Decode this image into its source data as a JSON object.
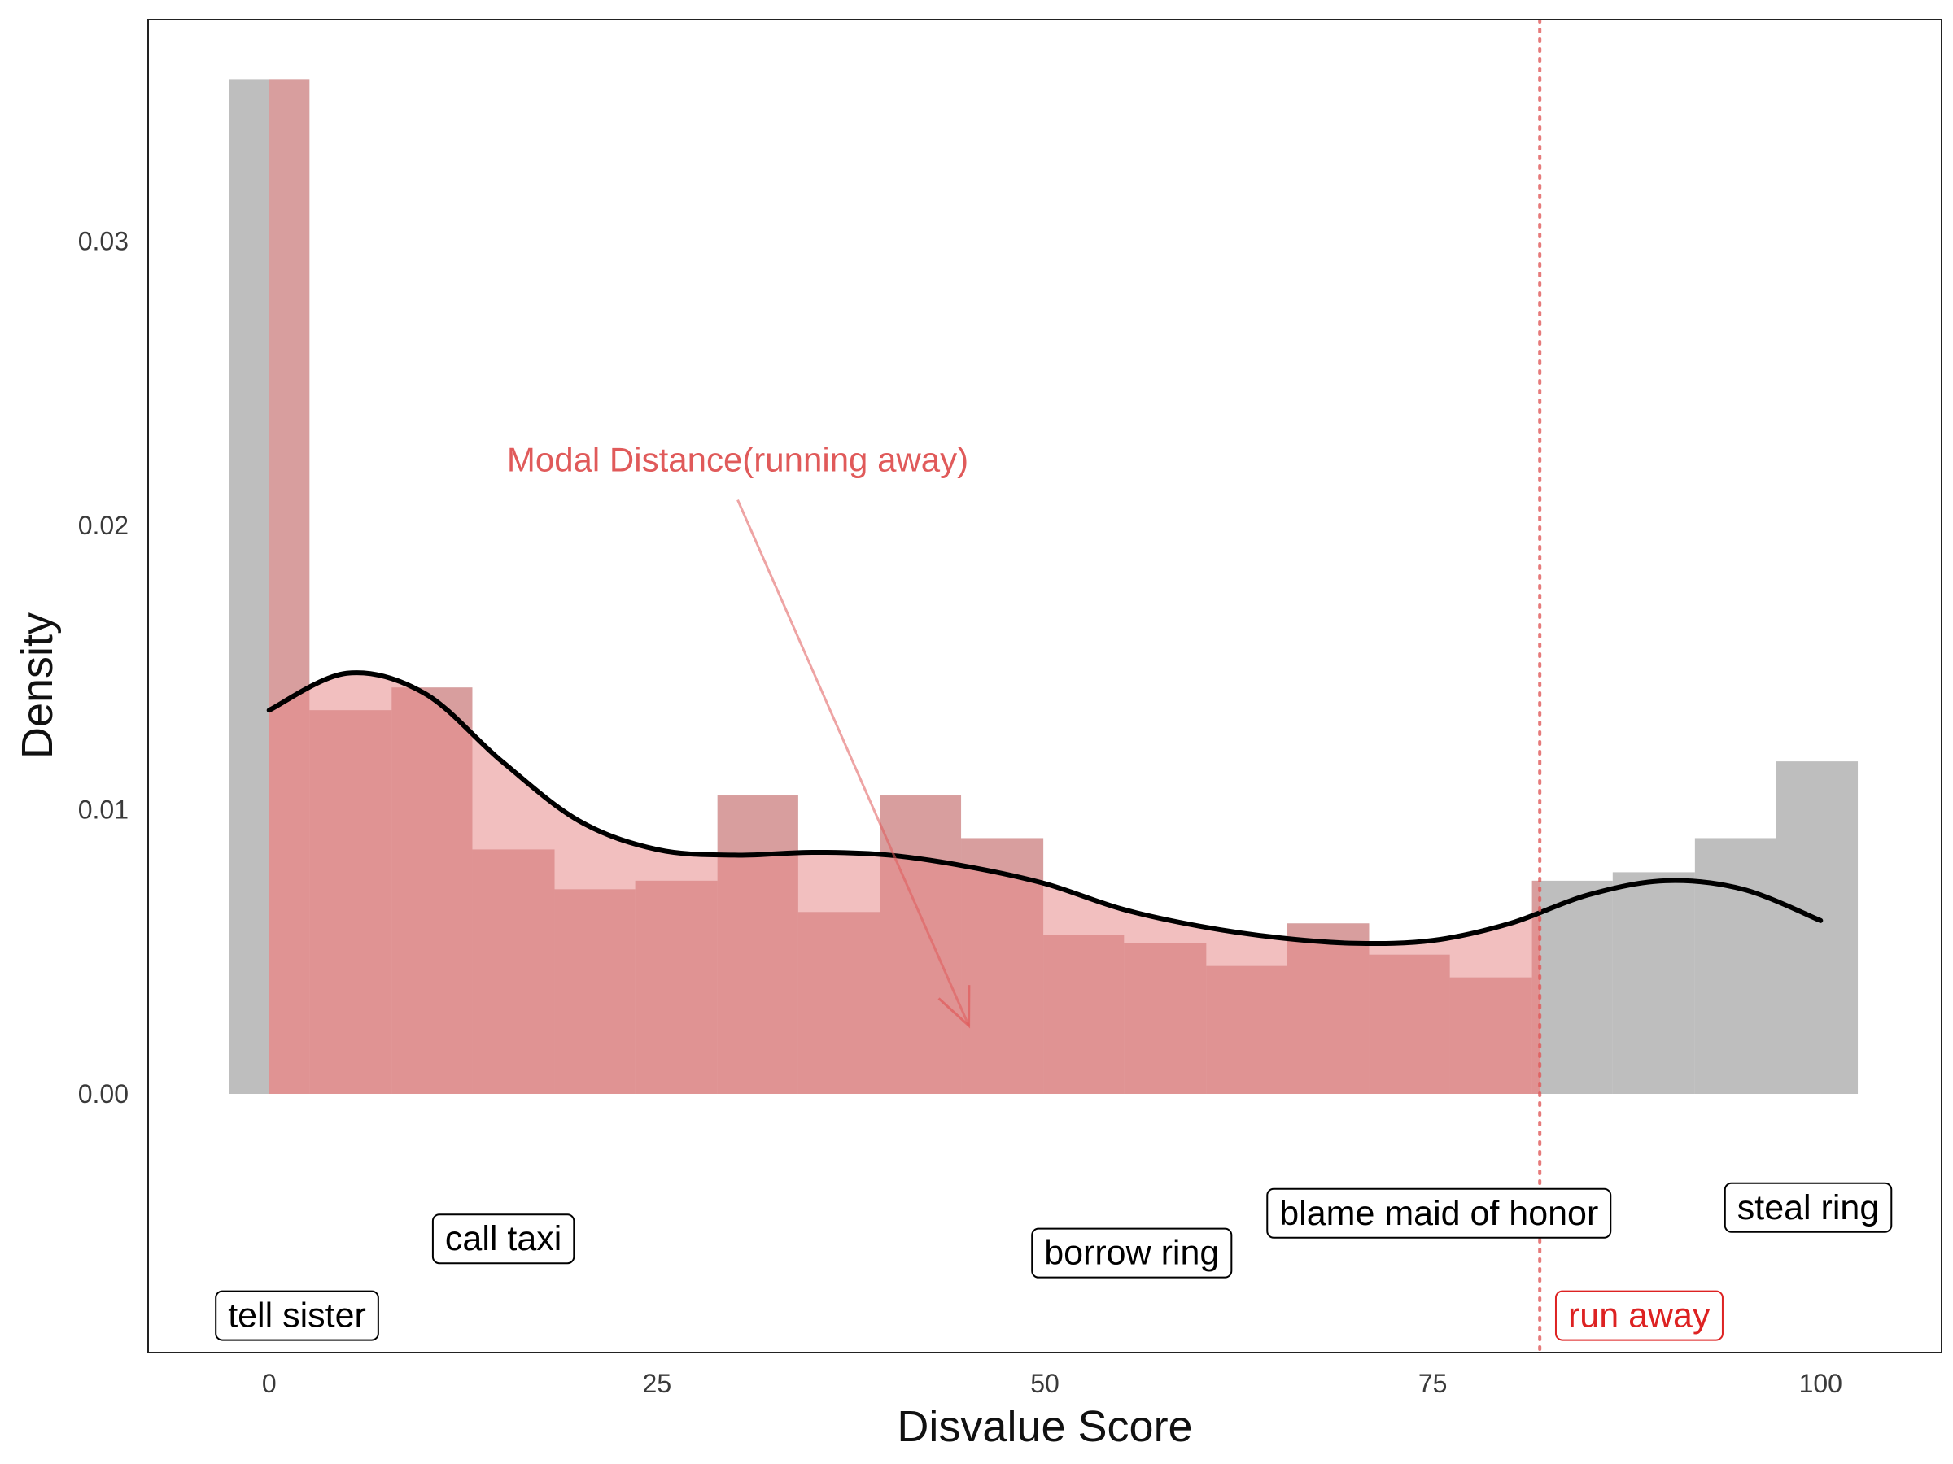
{
  "chart_data": {
    "type": "bar",
    "xlabel": "Disvalue Score",
    "ylabel": "Density",
    "xlim": [
      -7.8,
      107.8
    ],
    "ylim": [
      -0.0091,
      0.0378
    ],
    "x_ticks": [
      0,
      25,
      50,
      75,
      100
    ],
    "y_ticks": [
      0.0,
      0.01,
      0.02,
      0.03
    ],
    "y_tick_labels": [
      "0.00",
      "0.01",
      "0.02",
      "0.03"
    ],
    "grid": false,
    "legend": "none",
    "colors": {
      "histogram_all": "#bebebe",
      "histogram_highlight": "#e88a8a",
      "density_line": "#000000",
      "accent": "#e05a5a",
      "label_red": "#dd2222",
      "label_border": "#000000"
    },
    "histogram_all": {
      "bin_width": 5.25,
      "bins": [
        {
          "x_start": -2.6,
          "x_end": 2.6,
          "density": 0.0357
        },
        {
          "x_start": 2.6,
          "x_end": 7.9,
          "density": 0.0135
        },
        {
          "x_start": 7.9,
          "x_end": 13.1,
          "density": 0.0143
        },
        {
          "x_start": 13.1,
          "x_end": 18.4,
          "density": 0.0086
        },
        {
          "x_start": 18.4,
          "x_end": 23.6,
          "density": 0.0072
        },
        {
          "x_start": 23.6,
          "x_end": 28.9,
          "density": 0.0075
        },
        {
          "x_start": 28.9,
          "x_end": 34.1,
          "density": 0.0105
        },
        {
          "x_start": 34.1,
          "x_end": 39.4,
          "density": 0.0064
        },
        {
          "x_start": 39.4,
          "x_end": 44.6,
          "density": 0.0105
        },
        {
          "x_start": 44.6,
          "x_end": 49.9,
          "density": 0.009
        },
        {
          "x_start": 49.9,
          "x_end": 55.1,
          "density": 0.0056
        },
        {
          "x_start": 55.1,
          "x_end": 60.4,
          "density": 0.0053
        },
        {
          "x_start": 60.4,
          "x_end": 65.6,
          "density": 0.0045
        },
        {
          "x_start": 65.6,
          "x_end": 70.9,
          "density": 0.006
        },
        {
          "x_start": 70.9,
          "x_end": 76.1,
          "density": 0.0049
        },
        {
          "x_start": 76.1,
          "x_end": 81.4,
          "density": 0.0041
        },
        {
          "x_start": 81.4,
          "x_end": 86.6,
          "density": 0.0075
        },
        {
          "x_start": 86.6,
          "x_end": 91.9,
          "density": 0.0078
        },
        {
          "x_start": 91.9,
          "x_end": 97.1,
          "density": 0.009
        },
        {
          "x_start": 97.1,
          "x_end": 102.4,
          "density": 0.0117
        }
      ]
    },
    "highlight_region": {
      "description": "histogram portion at or below the run away score",
      "x_start": 0,
      "x_end": 81.9
    },
    "density_curve": {
      "x": [
        0,
        5,
        10,
        15,
        20,
        25,
        30,
        35,
        40,
        45,
        50,
        55,
        60,
        65,
        70,
        75,
        80,
        85,
        90,
        95,
        100
      ],
      "y": [
        0.0135,
        0.0148,
        0.0141,
        0.0117,
        0.0096,
        0.0086,
        0.0084,
        0.0085,
        0.0084,
        0.008,
        0.0074,
        0.0065,
        0.0059,
        0.0055,
        0.0053,
        0.0054,
        0.006,
        0.007,
        0.0075,
        0.0072,
        0.0061
      ]
    },
    "reference_line": {
      "x": 81.9,
      "style": "dotted"
    },
    "annotation": {
      "text": "Modal Distance(running away)",
      "text_x": 30.2,
      "text_y": 0.0219,
      "arrow_from": [
        30.2,
        0.0209
      ],
      "arrow_to": [
        45.1,
        0.0024
      ]
    },
    "labels": [
      {
        "text": "tell sister",
        "x": 1.8,
        "y": -0.0078,
        "highlight": false
      },
      {
        "text": "call taxi",
        "x": 15.1,
        "y": -0.0051,
        "highlight": false
      },
      {
        "text": "borrow ring",
        "x": 55.6,
        "y": -0.0056,
        "highlight": false
      },
      {
        "text": "blame maid of honor",
        "x": 75.4,
        "y": -0.0042,
        "highlight": false
      },
      {
        "text": "steal ring",
        "x": 99.2,
        "y": -0.004,
        "highlight": false
      },
      {
        "text": "run away",
        "x": 88.3,
        "y": -0.0078,
        "highlight": true
      }
    ]
  }
}
